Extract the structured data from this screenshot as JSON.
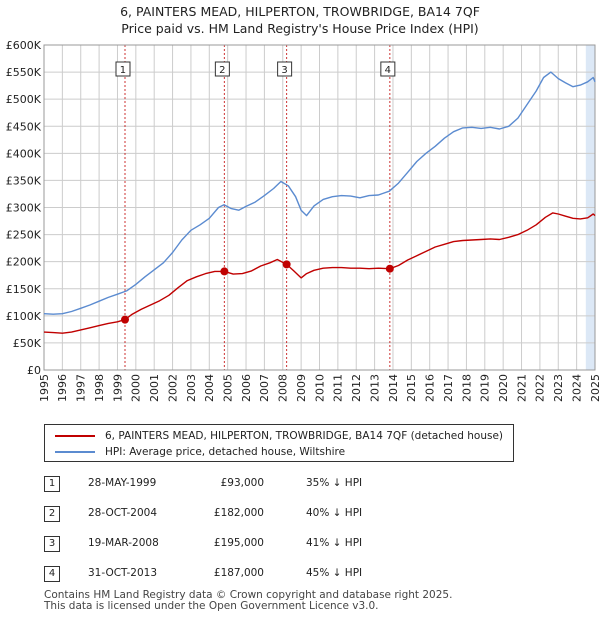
{
  "title": "6, PAINTERS MEAD, HILPERTON, TROWBRIDGE, BA14 7QF",
  "subtitle": "Price paid vs. HM Land Registry's House Price Index (HPI)",
  "colors": {
    "property": "#c00000",
    "hpi": "#5b8bd0",
    "band": "#dce8f6",
    "grid": "#cccccc"
  },
  "chart_data": {
    "type": "line",
    "ylim": [
      0,
      600000
    ],
    "xlim": [
      1995,
      2025
    ],
    "yticks": [
      0,
      50000,
      100000,
      150000,
      200000,
      250000,
      300000,
      350000,
      400000,
      450000,
      500000,
      550000,
      600000
    ],
    "ytick_labels": [
      "£0",
      "£50K",
      "£100K",
      "£150K",
      "£200K",
      "£250K",
      "£300K",
      "£350K",
      "£400K",
      "£450K",
      "£500K",
      "£550K",
      "£600K"
    ],
    "xticks": [
      1995,
      1996,
      1997,
      1998,
      1999,
      2000,
      2001,
      2002,
      2003,
      2004,
      2005,
      2006,
      2007,
      2008,
      2009,
      2010,
      2011,
      2012,
      2013,
      2014,
      2015,
      2016,
      2017,
      2018,
      2019,
      2020,
      2021,
      2022,
      2023,
      2024,
      2025
    ],
    "xtick_labels": [
      "1995",
      "1996",
      "1997",
      "1998",
      "1999",
      "2000",
      "2001",
      "2002",
      "2003",
      "2004",
      "2005",
      "2006",
      "2007",
      "2008",
      "2009",
      "2010",
      "2011",
      "2012",
      "2013",
      "2014",
      "2015",
      "2016",
      "2017",
      "2018",
      "2019",
      "2020",
      "2021",
      "2022",
      "2023",
      "2024",
      "2025"
    ],
    "series": [
      {
        "name": "6, PAINTERS MEAD, HILPERTON, TROWBRIDGE, BA14 7QF (detached house)",
        "color": "#c00000",
        "x": [
          1995.0,
          1995.5,
          1996.0,
          1996.5,
          1997.0,
          1997.5,
          1998.0,
          1998.5,
          1999.0,
          1999.41,
          1999.8,
          2000.3,
          2000.8,
          2001.3,
          2001.8,
          2002.3,
          2002.8,
          2003.3,
          2003.8,
          2004.3,
          2004.82,
          2005.3,
          2005.8,
          2006.3,
          2006.8,
          2007.3,
          2007.7,
          2008.21,
          2008.6,
          2009.0,
          2009.3,
          2009.7,
          2010.2,
          2010.7,
          2011.2,
          2011.7,
          2012.2,
          2012.7,
          2013.2,
          2013.83,
          2014.3,
          2014.8,
          2015.3,
          2015.8,
          2016.3,
          2016.8,
          2017.3,
          2017.8,
          2018.3,
          2018.8,
          2019.3,
          2019.8,
          2020.3,
          2020.8,
          2021.3,
          2021.8,
          2022.3,
          2022.7,
          2023.0,
          2023.4,
          2023.8,
          2024.2,
          2024.6,
          2024.9,
          2025.0
        ],
        "y": [
          70000,
          69000,
          68000,
          70000,
          74000,
          78000,
          82000,
          86000,
          89000,
          93000,
          103000,
          112000,
          120000,
          128000,
          138000,
          152000,
          165000,
          172000,
          178000,
          182000,
          182000,
          177000,
          178000,
          183000,
          192000,
          198000,
          204000,
          195000,
          183000,
          170000,
          178000,
          184000,
          188000,
          189000,
          189000,
          188000,
          188000,
          187000,
          188000,
          187000,
          193000,
          203000,
          211000,
          219000,
          227000,
          232000,
          237000,
          239000,
          240000,
          241000,
          242000,
          241000,
          245000,
          250000,
          258000,
          268000,
          282000,
          290000,
          288000,
          284000,
          280000,
          279000,
          281000,
          288000,
          285000
        ]
      },
      {
        "name": "HPI: Average price, detached house, Wiltshire",
        "color": "#5b8bd0",
        "x": [
          1995.0,
          1995.5,
          1996.0,
          1996.5,
          1997.0,
          1997.5,
          1998.0,
          1998.5,
          1999.0,
          1999.5,
          2000.0,
          2000.5,
          2001.0,
          2001.5,
          2002.0,
          2002.5,
          2003.0,
          2003.5,
          2004.0,
          2004.5,
          2004.8,
          2005.2,
          2005.6,
          2006.0,
          2006.5,
          2007.0,
          2007.5,
          2007.9,
          2008.3,
          2008.7,
          2009.0,
          2009.3,
          2009.7,
          2010.2,
          2010.7,
          2011.2,
          2011.7,
          2012.2,
          2012.7,
          2013.2,
          2013.8,
          2014.3,
          2014.8,
          2015.3,
          2015.8,
          2016.3,
          2016.8,
          2017.3,
          2017.8,
          2018.3,
          2018.8,
          2019.3,
          2019.8,
          2020.3,
          2020.8,
          2021.3,
          2021.8,
          2022.2,
          2022.6,
          2023.0,
          2023.4,
          2023.8,
          2024.2,
          2024.6,
          2024.9,
          2025.0
        ],
        "y": [
          104000,
          103000,
          104000,
          108000,
          114000,
          120000,
          127000,
          134000,
          140000,
          146000,
          158000,
          172000,
          185000,
          198000,
          217000,
          240000,
          258000,
          268000,
          280000,
          300000,
          305000,
          298000,
          295000,
          302000,
          310000,
          322000,
          335000,
          348000,
          340000,
          320000,
          295000,
          285000,
          303000,
          315000,
          320000,
          322000,
          321000,
          318000,
          322000,
          323000,
          330000,
          345000,
          365000,
          385000,
          400000,
          413000,
          428000,
          440000,
          447000,
          448000,
          446000,
          448000,
          445000,
          450000,
          465000,
          490000,
          515000,
          540000,
          550000,
          538000,
          530000,
          523000,
          526000,
          532000,
          540000,
          532000
        ]
      }
    ],
    "transactions": [
      {
        "label": "1",
        "x": 1999.41,
        "date": "28-MAY-1999",
        "price": 93000,
        "price_label": "£93,000",
        "hpi_delta": "35% ↓ HPI"
      },
      {
        "label": "2",
        "x": 2004.82,
        "date": "28-OCT-2004",
        "price": 182000,
        "price_label": "£182,000",
        "hpi_delta": "40% ↓ HPI"
      },
      {
        "label": "3",
        "x": 2008.21,
        "date": "19-MAR-2008",
        "price": 195000,
        "price_label": "£195,000",
        "hpi_delta": "41% ↓ HPI"
      },
      {
        "label": "4",
        "x": 2013.83,
        "date": "31-OCT-2013",
        "price": 187000,
        "price_label": "£187,000",
        "hpi_delta": "45% ↓ HPI"
      }
    ],
    "legend_position": "bottom"
  },
  "legend": {
    "property_label": "6, PAINTERS MEAD, HILPERTON, TROWBRIDGE, BA14 7QF (detached house)",
    "hpi_label": "HPI: Average price, detached house, Wiltshire"
  },
  "footer": {
    "line1": "Contains HM Land Registry data © Crown copyright and database right 2025.",
    "line2": "This data is licensed under the Open Government Licence v3.0."
  }
}
